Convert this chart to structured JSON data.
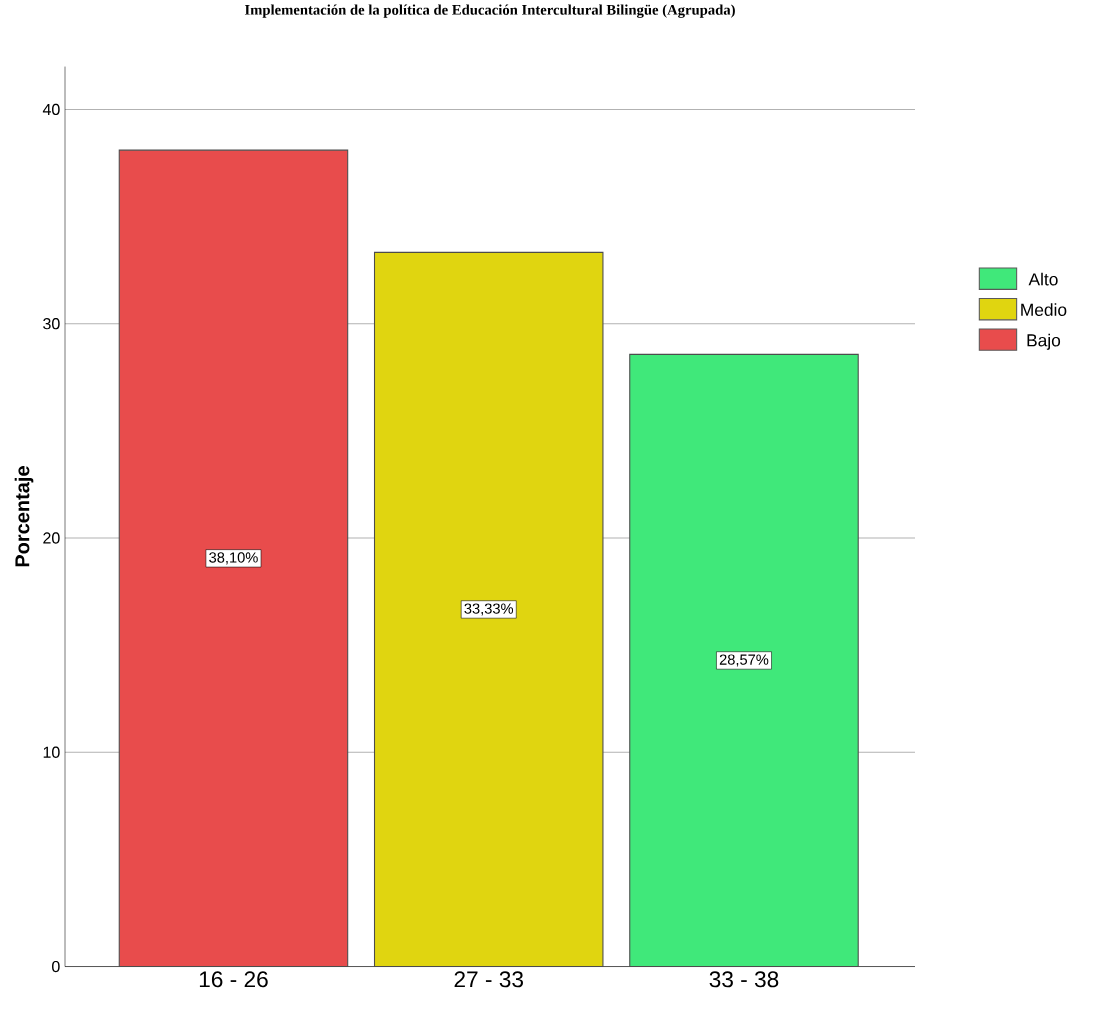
{
  "chart_data": {
    "type": "bar",
    "title": "Implementación de la política de Educación Intercultural Bilingüe (Agrupada)",
    "ylabel": "Porcentaje",
    "categories": [
      "16 - 26",
      "27 - 33",
      "33 - 38"
    ],
    "series": [
      {
        "name": "Alto",
        "color": "#40e87a",
        "values": [
          null,
          null,
          28.57
        ],
        "value_labels": [
          null,
          null,
          "28,57%"
        ]
      },
      {
        "name": "Medio",
        "color": "#e0d510",
        "values": [
          null,
          33.33,
          null
        ],
        "value_labels": [
          null,
          "33,33%",
          null
        ]
      },
      {
        "name": "Bajo",
        "color": "#e84c4c",
        "values": [
          38.1,
          null,
          null
        ],
        "value_labels": [
          "38,10%",
          null,
          null
        ]
      }
    ],
    "ylim": [
      0,
      42
    ],
    "yticks": [
      0,
      10,
      20,
      30,
      40
    ],
    "grid": "y",
    "legend": "right"
  }
}
